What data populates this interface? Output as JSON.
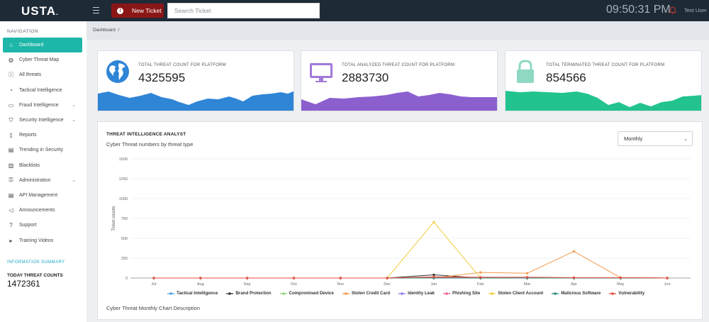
{
  "header": {
    "logo": "USTA",
    "logo_dot": ".",
    "new_ticket_label": "New Ticket",
    "search_placeholder": "Search Ticket",
    "clock": "09:50:31 PM",
    "user_name": "Test User"
  },
  "sidebar": {
    "title": "NAVIGATION",
    "items": [
      {
        "label": "Dashboard",
        "icon": "home-icon",
        "active": true,
        "chevron": false
      },
      {
        "label": "Cyber Threat Map",
        "icon": "globe-icon",
        "active": false,
        "chevron": false
      },
      {
        "label": "All threats",
        "icon": "alert-circle-icon",
        "active": false,
        "chevron": false
      },
      {
        "label": "Tactical Intelligence",
        "icon": "compass-icon",
        "active": false,
        "chevron": false
      },
      {
        "label": "Fraud Intelligence",
        "icon": "credit-card-icon",
        "active": false,
        "chevron": true
      },
      {
        "label": "Security Intelligence",
        "icon": "shield-icon",
        "active": false,
        "chevron": true
      },
      {
        "label": "Reports",
        "icon": "file-icon",
        "active": false,
        "chevron": false
      },
      {
        "label": "Trending in Security",
        "icon": "newspaper-icon",
        "active": false,
        "chevron": false
      },
      {
        "label": "Blacklists",
        "icon": "building-icon",
        "active": false,
        "chevron": false
      },
      {
        "label": "Administration",
        "icon": "lock-icon",
        "active": false,
        "chevron": true
      },
      {
        "label": "API Management",
        "icon": "document-icon",
        "active": false,
        "chevron": false
      },
      {
        "label": "Announcements",
        "icon": "megaphone-icon",
        "active": false,
        "chevron": false
      },
      {
        "label": "Support",
        "icon": "question-icon",
        "active": false,
        "chevron": false
      },
      {
        "label": "Training Videos",
        "icon": "play-icon",
        "active": false,
        "chevron": false
      }
    ],
    "info_title": "INFORMATION SUMMARY",
    "today_label": "TODAY THREAT COUNTS",
    "today_value": "1472361"
  },
  "breadcrumb": {
    "label": "Dashboard",
    "separator": "/"
  },
  "cards": [
    {
      "label": "TOTAL THREAT COUNT FOR PLATFORM",
      "value": "4325595",
      "color": "#2f85d6",
      "icon": "globe-icon"
    },
    {
      "label": "TOTAL ANALYZED THREAT COUNT FOR PLATFORM",
      "value": "2883730",
      "color": "#8c5fcf",
      "icon": "monitor-icon"
    },
    {
      "label": "TOTAL TERMINATED THREAT COUNT FOR PLATFORM",
      "value": "854566",
      "color": "#22c38e",
      "icon": "lock-icon"
    }
  ],
  "panel": {
    "title": "THREAT INTELLIGENCE ANALYST",
    "subtitle": "Cyber Threat numbers by threat type",
    "period_select": "Monthly",
    "description": "Cyber Threat Monthly Chart Description"
  },
  "chart_data": {
    "type": "line",
    "ylabel": "Ticket counts",
    "ylim": [
      0,
      1500
    ],
    "yticks": [
      0,
      250,
      500,
      750,
      1000,
      1250,
      1500
    ],
    "grid": true,
    "legend_position": "bottom",
    "categories": [
      "Jul",
      "Aug",
      "Sep",
      "Oct",
      "Nov",
      "Dec",
      "Jan",
      "Feb",
      "Mar",
      "Apr",
      "May",
      "Jun"
    ],
    "series": [
      {
        "name": "Tactical Intelligence",
        "color": "#4aa3df",
        "values": [
          0,
          0,
          0,
          0,
          0,
          0,
          0,
          0,
          0,
          0,
          0,
          0
        ]
      },
      {
        "name": "Brand Protection",
        "color": "#333333",
        "values": [
          0,
          0,
          0,
          0,
          0,
          0,
          40,
          0,
          5,
          5,
          5,
          0
        ]
      },
      {
        "name": "Compromised Device",
        "color": "#8fd17a",
        "values": [
          0,
          0,
          0,
          0,
          0,
          0,
          10,
          5,
          5,
          5,
          5,
          0
        ]
      },
      {
        "name": "Stolen Credit Card",
        "color": "#f39a4c",
        "values": [
          0,
          0,
          0,
          0,
          0,
          0,
          0,
          70,
          60,
          335,
          5,
          0
        ]
      },
      {
        "name": "Identity Leak",
        "color": "#8e7cf0",
        "values": [
          0,
          0,
          0,
          0,
          0,
          0,
          0,
          0,
          0,
          0,
          0,
          0
        ]
      },
      {
        "name": "Phishing Site",
        "color": "#ef5f8a",
        "values": [
          0,
          0,
          0,
          0,
          0,
          0,
          5,
          5,
          5,
          5,
          0,
          0
        ]
      },
      {
        "name": "Stolen Client Account",
        "color": "#f2cc3e",
        "values": [
          0,
          0,
          0,
          0,
          0,
          0,
          705,
          0,
          0,
          0,
          0,
          0
        ]
      },
      {
        "name": "Malicious Software",
        "color": "#2a8a7e",
        "values": [
          0,
          0,
          0,
          0,
          0,
          0,
          0,
          0,
          0,
          0,
          0,
          0
        ]
      },
      {
        "name": "Vulnerability",
        "color": "#e74c3c",
        "values": [
          0,
          0,
          0,
          0,
          0,
          0,
          15,
          10,
          10,
          5,
          5,
          0
        ]
      }
    ]
  }
}
